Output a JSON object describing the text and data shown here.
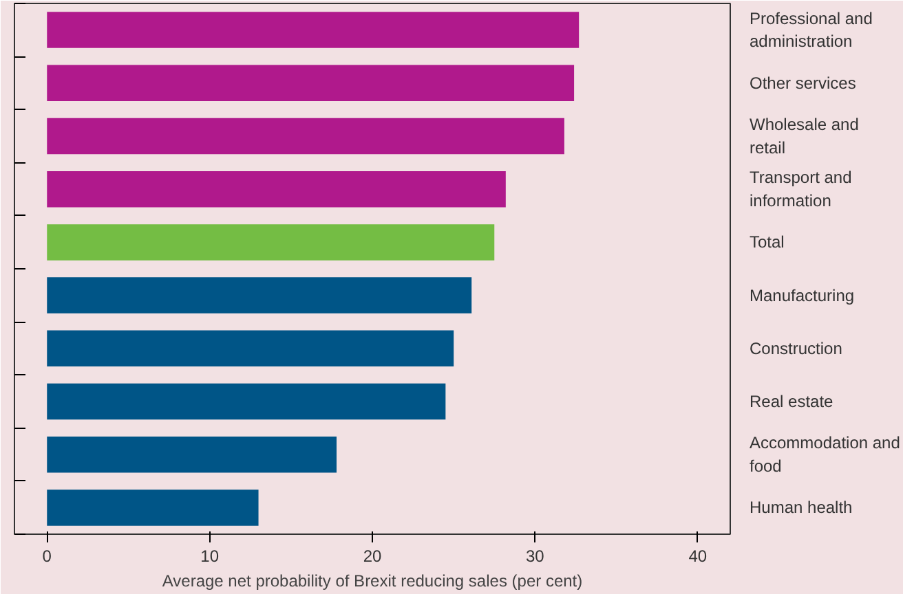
{
  "chart_data": {
    "type": "bar",
    "orientation": "horizontal",
    "xlabel": "Average net probability of Brexit reducing sales (per cent)",
    "categories": [
      "Professional and administration",
      "Other services",
      "Wholesale and retail",
      "Transport and information",
      "Total",
      "Manufacturing",
      "Construction",
      "Real estate",
      "Accommodation and food",
      "Human health"
    ],
    "values": [
      32.7,
      32.4,
      31.8,
      28.2,
      27.5,
      26.1,
      25.0,
      24.5,
      17.8,
      13.0
    ],
    "colors": [
      "#b0198c",
      "#b0198c",
      "#b0198c",
      "#b0198c",
      "#74bd44",
      "#005587",
      "#005587",
      "#005587",
      "#005587",
      "#005587"
    ],
    "xlim": [
      -2,
      42
    ],
    "xticks": [
      0,
      10,
      20,
      30,
      40
    ],
    "grid": false
  }
}
